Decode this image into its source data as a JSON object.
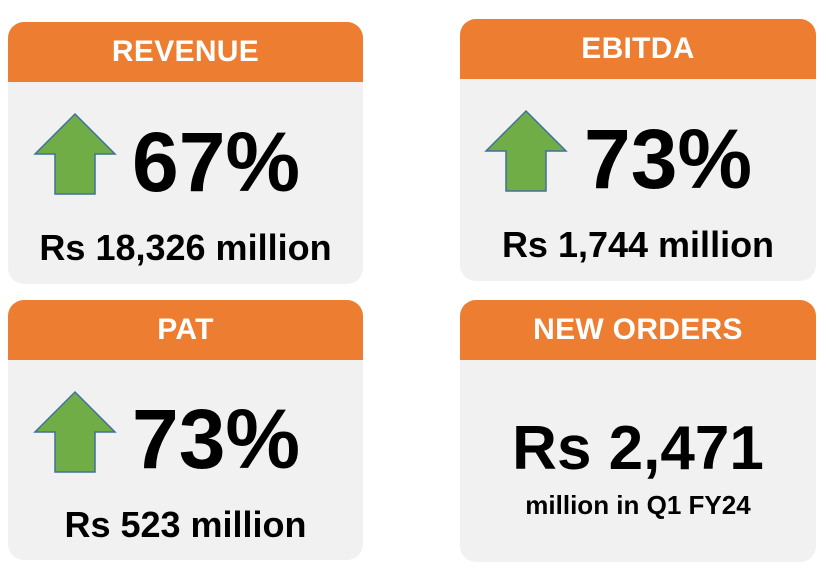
{
  "revenue": {
    "title": "REVENUE",
    "change": "67%",
    "amount": "Rs 18,326 million",
    "direction": "up"
  },
  "ebitda": {
    "title": "EBITDA",
    "change": "73%",
    "amount": "Rs 1,744 million",
    "direction": "up"
  },
  "pat": {
    "title": "PAT",
    "change": "73%",
    "amount": "Rs 523 million",
    "direction": "up"
  },
  "new_orders": {
    "title": "NEW ORDERS",
    "amount": "Rs 2,471",
    "detail": "million in Q1 FY24"
  },
  "colors": {
    "header": "#ed7d31",
    "card": "#f1f1f1",
    "arrow_fill": "#70ad47",
    "arrow_stroke": "#41719c"
  },
  "icons": {
    "up_arrow": "up-arrow-icon"
  }
}
